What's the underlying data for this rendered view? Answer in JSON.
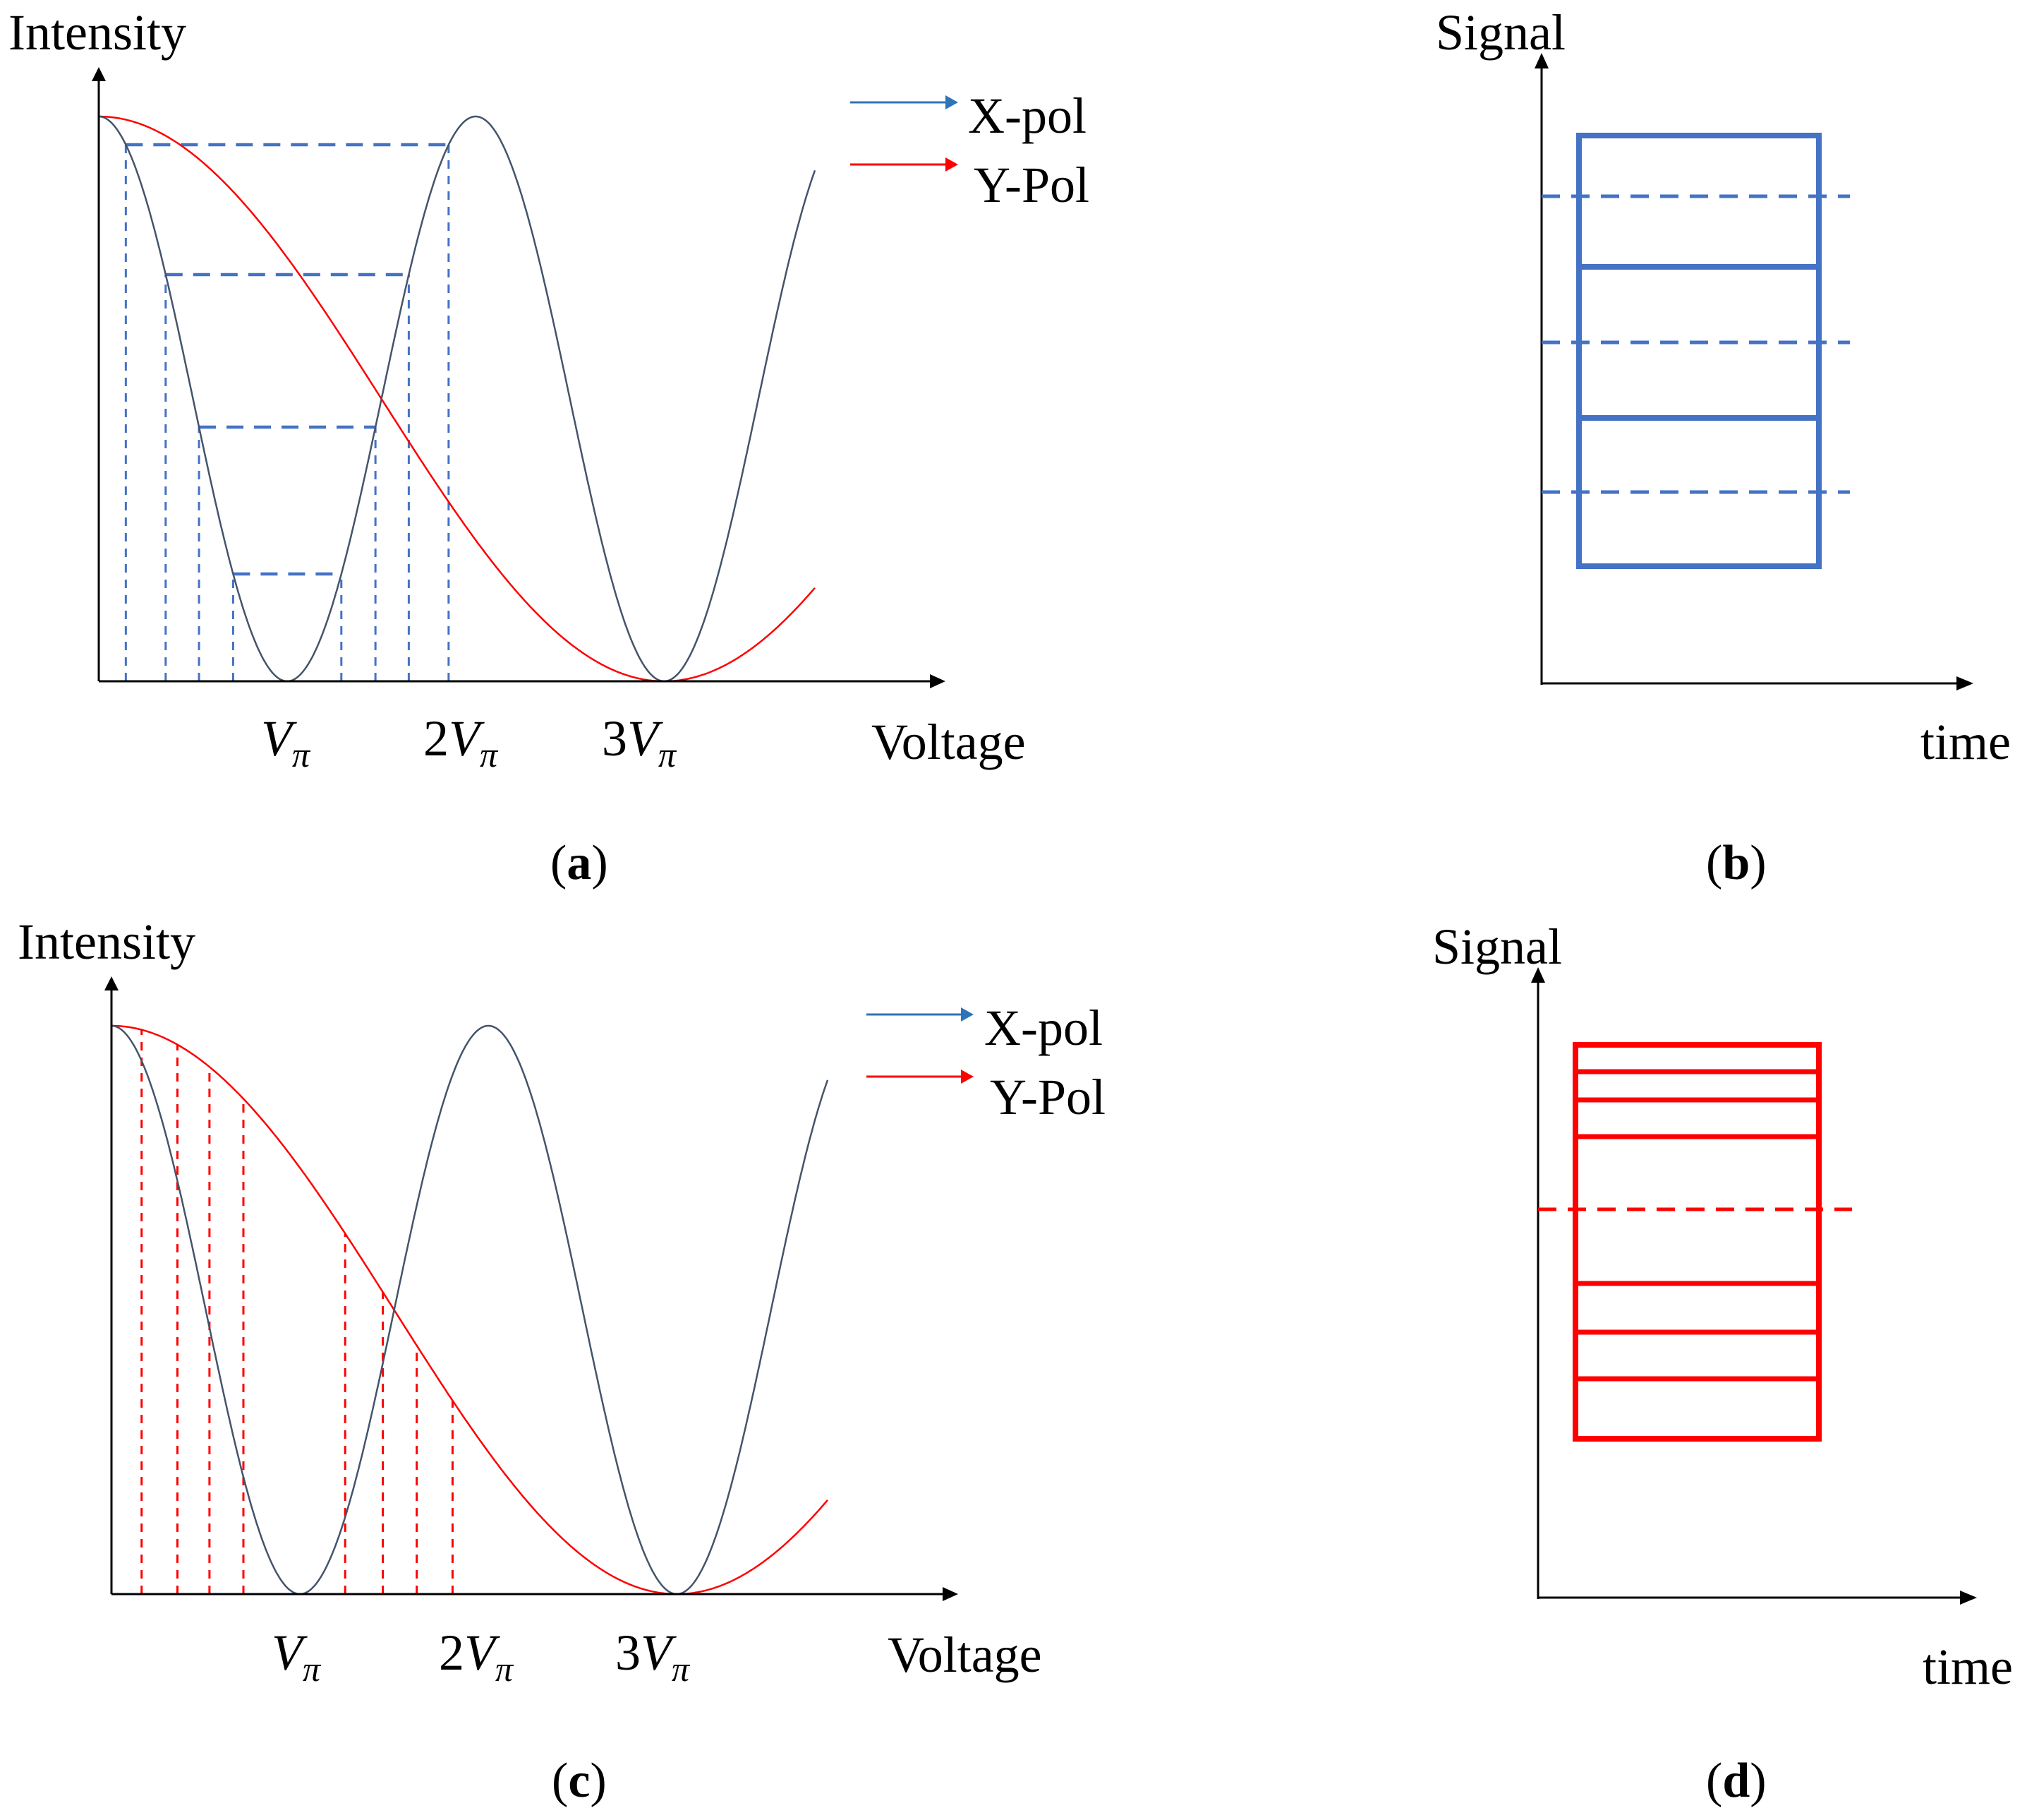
{
  "colors": {
    "xpol": "#44546A",
    "xpol_arrow": "#2E75B6",
    "ypol": "#FF0000",
    "blue_levels": "#4472C4",
    "red_levels": "#FF0000",
    "axis": "#000000"
  },
  "panels": {
    "a": {
      "caption_open": "(",
      "caption_letter": "a",
      "caption_close": ")",
      "ylabel": "Intensity",
      "xlabel": "Voltage",
      "ticks": [
        {
          "coef": "",
          "v": "V",
          "sub": "π"
        },
        {
          "coef": "2",
          "v": "V",
          "sub": "π"
        },
        {
          "coef": "3",
          "v": "V",
          "sub": "π"
        }
      ],
      "legend": [
        {
          "label": "X-pol",
          "color_key": "xpol_arrow"
        },
        {
          "label": "Y-Pol",
          "color_key": "ypol"
        }
      ]
    },
    "b": {
      "caption_open": "(",
      "caption_letter": "b",
      "caption_close": ")",
      "ylabel": "Signal",
      "xlabel": "time"
    },
    "c": {
      "caption_open": "(",
      "caption_letter": "c",
      "caption_close": ")",
      "ylabel": "Intensity",
      "xlabel": "Voltage",
      "ticks": [
        {
          "coef": "",
          "v": "V",
          "sub": "π"
        },
        {
          "coef": "2",
          "v": "V",
          "sub": "π"
        },
        {
          "coef": "3",
          "v": "V",
          "sub": "π"
        }
      ],
      "legend": [
        {
          "label": "X-pol",
          "color_key": "xpol_arrow"
        },
        {
          "label": "Y-Pol",
          "color_key": "ypol"
        }
      ]
    },
    "d": {
      "caption_open": "(",
      "caption_letter": "d",
      "caption_close": ")",
      "ylabel": "Signal",
      "xlabel": "time"
    }
  },
  "model": {
    "xpol_intensity": "cos^2(pi V / (2 Vpi))",
    "ypol_intensity": "cos^2(pi V / (6 Vpi))",
    "v_max_in_vpi": 3.8,
    "blue_levels_normalized": [
      0.95,
      0.72,
      0.45,
      0.19
    ],
    "red_level_voltages_in_vpi": [
      0.16,
      0.35,
      0.52,
      0.7,
      1.24,
      1.44,
      1.62,
      1.81
    ]
  }
}
